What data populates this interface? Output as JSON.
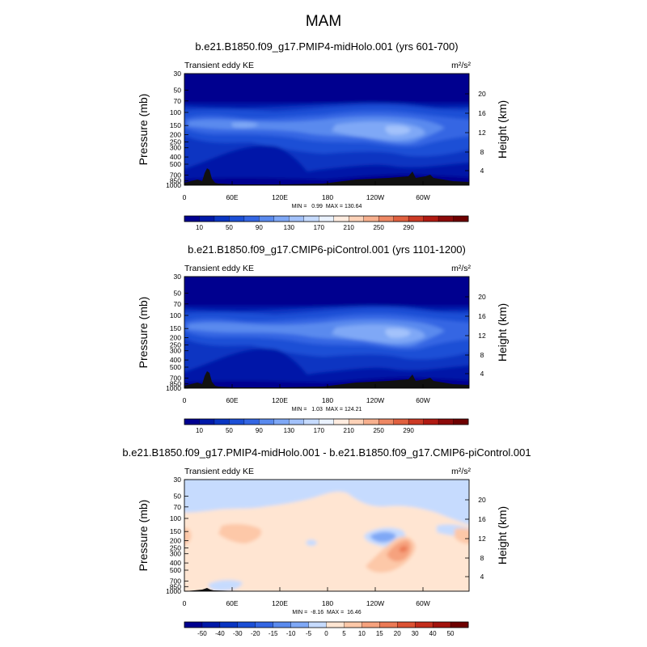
{
  "figure": {
    "title": "MAM"
  },
  "chart_data": [
    {
      "type": "heatmap",
      "title": "b.e21.B1850.f09_g17.PMIP4-midHolo.001 (yrs 601-700)",
      "left_label": "Transient eddy KE",
      "units": "m²/s²",
      "ylabel": "Pressure (mb)",
      "ylabel_right": "Height (km)",
      "y_scale": "log",
      "ylim": [
        1000,
        30
      ],
      "y_ticks": [
        30,
        50,
        70,
        100,
        150,
        200,
        250,
        300,
        400,
        500,
        700,
        850,
        1000
      ],
      "height_ticks": [
        20,
        16,
        12,
        8,
        4
      ],
      "x_ticks": [
        "0",
        "60E",
        "120E",
        "180",
        "120W",
        "60W"
      ],
      "x_tick_values": [
        0,
        60,
        120,
        180,
        240,
        300
      ],
      "xlim": [
        0,
        357.5
      ],
      "stats": "MIN =   0.99  MAX = 130.64",
      "min": 0.99,
      "max": 130.64,
      "colorbar": {
        "labels": [
          "10",
          "50",
          "90",
          "130",
          "170",
          "210",
          "250",
          "290"
        ],
        "levels": [
          10,
          30,
          50,
          70,
          90,
          110,
          130,
          150,
          170,
          190,
          210,
          230,
          250,
          270,
          290
        ],
        "colors": [
          "#00008f",
          "#0019a8",
          "#0a35c2",
          "#1c4fd6",
          "#3466e3",
          "#5a8aee",
          "#7fa8f6",
          "#a3c2fb",
          "#c6dbfe",
          "#eaf2ff",
          "#ffece0",
          "#fdd2b8",
          "#f7b08e",
          "#ee8864",
          "#e0603f",
          "#cc3a25",
          "#b01a12",
          "#8c0a0a",
          "#6e0000"
        ],
        "ticks_every": 2
      }
    },
    {
      "type": "heatmap",
      "title": "b.e21.B1850.f09_g17.CMIP6-piControl.001 (yrs 1101-1200)",
      "left_label": "Transient eddy KE",
      "units": "m²/s²",
      "ylabel": "Pressure (mb)",
      "ylabel_right": "Height (km)",
      "y_scale": "log",
      "ylim": [
        1000,
        30
      ],
      "y_ticks": [
        30,
        50,
        70,
        100,
        150,
        200,
        250,
        300,
        400,
        500,
        700,
        850,
        1000
      ],
      "height_ticks": [
        20,
        16,
        12,
        8,
        4
      ],
      "x_ticks": [
        "0",
        "60E",
        "120E",
        "180",
        "120W",
        "60W"
      ],
      "x_tick_values": [
        0,
        60,
        120,
        180,
        240,
        300
      ],
      "xlim": [
        0,
        357.5
      ],
      "stats": "MIN =   1.03  MAX = 124.21",
      "min": 1.03,
      "max": 124.21,
      "colorbar": {
        "labels": [
          "10",
          "50",
          "90",
          "130",
          "170",
          "210",
          "250",
          "290"
        ],
        "levels": [
          10,
          30,
          50,
          70,
          90,
          110,
          130,
          150,
          170,
          190,
          210,
          230,
          250,
          270,
          290
        ],
        "colors": [
          "#00008f",
          "#0019a8",
          "#0a35c2",
          "#1c4fd6",
          "#3466e3",
          "#5a8aee",
          "#7fa8f6",
          "#a3c2fb",
          "#c6dbfe",
          "#eaf2ff",
          "#ffece0",
          "#fdd2b8",
          "#f7b08e",
          "#ee8864",
          "#e0603f",
          "#cc3a25",
          "#b01a12",
          "#8c0a0a",
          "#6e0000"
        ],
        "ticks_every": 2
      }
    },
    {
      "type": "heatmap",
      "title": "b.e21.B1850.f09_g17.PMIP4-midHolo.001 - b.e21.B1850.f09_g17.CMIP6-piControl.001",
      "left_label": "Transient eddy KE",
      "units": "m²/s²",
      "ylabel": "Pressure (mb)",
      "ylabel_right": "Height (km)",
      "y_scale": "log",
      "ylim": [
        1000,
        30
      ],
      "y_ticks": [
        30,
        50,
        70,
        100,
        150,
        200,
        250,
        300,
        400,
        500,
        700,
        850,
        1000
      ],
      "height_ticks": [
        20,
        16,
        12,
        8,
        4
      ],
      "x_ticks": [
        "0",
        "60E",
        "120E",
        "180",
        "120W",
        "60W"
      ],
      "x_tick_values": [
        0,
        60,
        120,
        180,
        240,
        300
      ],
      "xlim": [
        0,
        357.5
      ],
      "stats": "MIN =  -8.16  MAX =  16.46",
      "min": -8.16,
      "max": 16.46,
      "colorbar": {
        "labels": [
          "-50",
          "-40",
          "-30",
          "-20",
          "-15",
          "-10",
          "-5",
          "0",
          "5",
          "10",
          "15",
          "20",
          "30",
          "40",
          "50"
        ],
        "levels": [
          -50,
          -40,
          -30,
          -20,
          -15,
          -10,
          -5,
          0,
          5,
          10,
          15,
          20,
          30,
          40,
          50
        ],
        "colors": [
          "#00008f",
          "#0019a8",
          "#0a35c2",
          "#1c4fd6",
          "#3466e3",
          "#5a8aee",
          "#7fa8f6",
          "#c6dbfe",
          "#ffe5d2",
          "#fdc8a8",
          "#f6a27e",
          "#ec7a55",
          "#dc5233",
          "#c42d1c",
          "#a3120c",
          "#6e0000"
        ],
        "ticks_every": 1
      }
    }
  ]
}
